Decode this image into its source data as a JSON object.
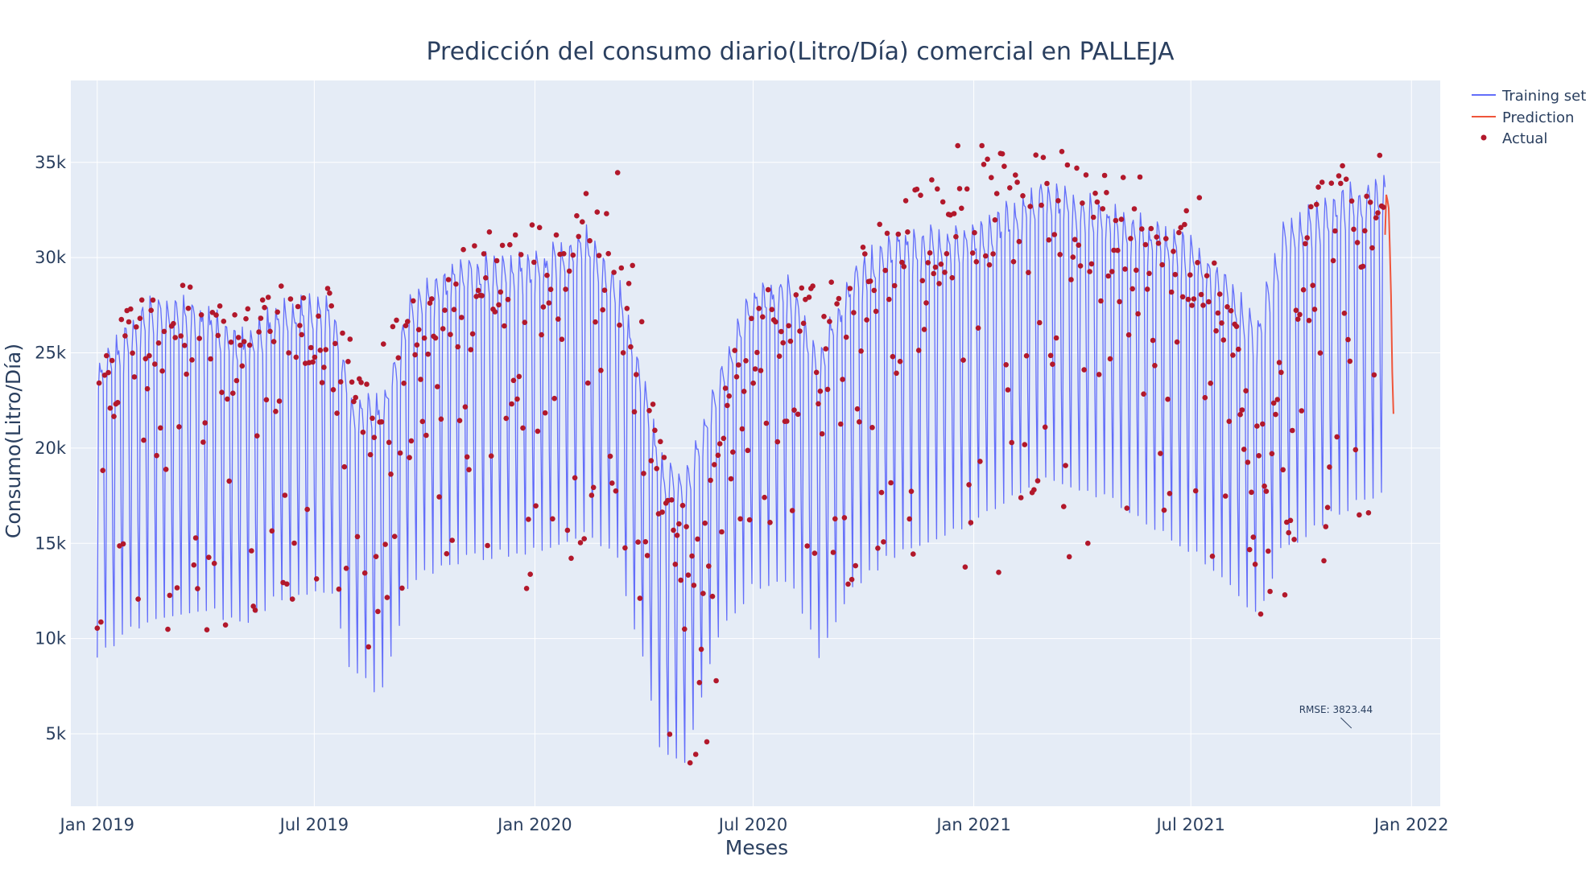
{
  "chart_data": {
    "type": "line",
    "title": "Predicción del consumo diario(Litro/Día) comercial en PALLEJA",
    "xlabel": "Meses",
    "ylabel": "Consumo(Litro/Día)",
    "x_range": [
      "2018-12-10",
      "2022-01-25"
    ],
    "ylim": [
      1200,
      39300
    ],
    "x_ticks": [
      {
        "date": "2019-01-01",
        "label": "Jan 2019"
      },
      {
        "date": "2019-07-01",
        "label": "Jul 2019"
      },
      {
        "date": "2020-01-01",
        "label": "Jan 2020"
      },
      {
        "date": "2020-07-01",
        "label": "Jul 2020"
      },
      {
        "date": "2021-01-01",
        "label": "Jan 2021"
      },
      {
        "date": "2021-07-01",
        "label": "Jul 2021"
      },
      {
        "date": "2022-01-01",
        "label": "Jan 2022"
      }
    ],
    "y_ticks": [
      {
        "value": 5000,
        "label": "5k"
      },
      {
        "value": 10000,
        "label": "10k"
      },
      {
        "value": 15000,
        "label": "15k"
      },
      {
        "value": 20000,
        "label": "20k"
      },
      {
        "value": 25000,
        "label": "25k"
      },
      {
        "value": 30000,
        "label": "30k"
      },
      {
        "value": 35000,
        "label": "35k"
      }
    ],
    "grid": true,
    "legend_position": "top-right",
    "series": [
      {
        "name": "Training set",
        "kind": "line",
        "color": "#636efa",
        "period_days": 7,
        "envelope": [
          {
            "date": "2019-01-01",
            "high": 24500,
            "low": 9000
          },
          {
            "date": "2019-02-15",
            "high": 28000,
            "low": 11000
          },
          {
            "date": "2019-04-01",
            "high": 27500,
            "low": 11500
          },
          {
            "date": "2019-05-01",
            "high": 26000,
            "low": 10500
          },
          {
            "date": "2019-06-01",
            "high": 27500,
            "low": 12000
          },
          {
            "date": "2019-07-15",
            "high": 28000,
            "low": 12500
          },
          {
            "date": "2019-08-01",
            "high": 23000,
            "low": 8000
          },
          {
            "date": "2019-08-25",
            "high": 22500,
            "low": 7000
          },
          {
            "date": "2019-09-20",
            "high": 28000,
            "low": 13000
          },
          {
            "date": "2019-11-01",
            "high": 30000,
            "low": 14000
          },
          {
            "date": "2020-01-01",
            "high": 30000,
            "low": 14500
          },
          {
            "date": "2020-02-15",
            "high": 31500,
            "low": 15500
          },
          {
            "date": "2020-03-10",
            "high": 29000,
            "low": 14000
          },
          {
            "date": "2020-04-01",
            "high": 23500,
            "low": 8500
          },
          {
            "date": "2020-04-15",
            "high": 19500,
            "low": 4000
          },
          {
            "date": "2020-05-05",
            "high": 18500,
            "low": 3500
          },
          {
            "date": "2020-06-01",
            "high": 24000,
            "low": 10000
          },
          {
            "date": "2020-07-01",
            "high": 28500,
            "low": 12500
          },
          {
            "date": "2020-08-01",
            "high": 29000,
            "low": 13000
          },
          {
            "date": "2020-08-25",
            "high": 25000,
            "low": 9000
          },
          {
            "date": "2020-09-20",
            "high": 29500,
            "low": 12500
          },
          {
            "date": "2020-11-01",
            "high": 31500,
            "low": 14500
          },
          {
            "date": "2021-01-01",
            "high": 31500,
            "low": 16000
          },
          {
            "date": "2021-03-01",
            "high": 34000,
            "low": 18500
          },
          {
            "date": "2021-05-01",
            "high": 32500,
            "low": 17000
          },
          {
            "date": "2021-07-01",
            "high": 31000,
            "low": 14500
          },
          {
            "date": "2021-08-01",
            "high": 29000,
            "low": 13000
          },
          {
            "date": "2021-08-25",
            "high": 26500,
            "low": 11000
          },
          {
            "date": "2021-09-15",
            "high": 31500,
            "low": 14500
          },
          {
            "date": "2021-11-01",
            "high": 33500,
            "low": 16500
          },
          {
            "date": "2021-12-08",
            "high": 34000,
            "low": 17500
          }
        ],
        "end_date": "2021-12-10"
      },
      {
        "name": "Prediction",
        "kind": "line",
        "color": "#ef553b",
        "x": [
          "2021-12-10",
          "2021-12-11",
          "2021-12-12",
          "2021-12-13",
          "2021-12-14",
          "2021-12-15",
          "2021-12-16",
          "2021-12-17"
        ],
        "y": [
          31200,
          33300,
          33000,
          32600,
          30500,
          28000,
          24000,
          21800
        ]
      },
      {
        "name": "Actual",
        "kind": "markers",
        "color": "#b2182b",
        "envelope": [
          {
            "date": "2019-01-01",
            "high": 26000,
            "low": 10000
          },
          {
            "date": "2019-03-01",
            "high": 29000,
            "low": 9500
          },
          {
            "date": "2019-05-01",
            "high": 27500,
            "low": 10500
          },
          {
            "date": "2019-06-15",
            "high": 29500,
            "low": 12000
          },
          {
            "date": "2019-07-20",
            "high": 28500,
            "low": 12000
          },
          {
            "date": "2019-08-15",
            "high": 24000,
            "low": 9000
          },
          {
            "date": "2019-09-25",
            "high": 29000,
            "low": 12500
          },
          {
            "date": "2019-11-15",
            "high": 31500,
            "low": 14000
          },
          {
            "date": "2020-01-15",
            "high": 32000,
            "low": 10000
          },
          {
            "date": "2020-03-10",
            "high": 35500,
            "low": 15000
          },
          {
            "date": "2020-04-10",
            "high": 22000,
            "low": 9000
          },
          {
            "date": "2020-04-25",
            "high": 17500,
            "low": 3500
          },
          {
            "date": "2020-05-20",
            "high": 16000,
            "low": 3200
          },
          {
            "date": "2020-06-15",
            "high": 26000,
            "low": 13000
          },
          {
            "date": "2020-07-15",
            "high": 29000,
            "low": 13500
          },
          {
            "date": "2020-09-01",
            "high": 28500,
            "low": 11500
          },
          {
            "date": "2020-11-01",
            "high": 33500,
            "low": 13000
          },
          {
            "date": "2020-12-20",
            "high": 36500,
            "low": 9500
          },
          {
            "date": "2021-03-01",
            "high": 36500,
            "low": 13500
          },
          {
            "date": "2021-05-15",
            "high": 34500,
            "low": 12000
          },
          {
            "date": "2021-07-15",
            "high": 33000,
            "low": 13000
          },
          {
            "date": "2021-09-01",
            "high": 21000,
            "low": 11000
          },
          {
            "date": "2021-10-15",
            "high": 34500,
            "low": 14000
          },
          {
            "date": "2021-12-10",
            "high": 35500,
            "low": 14500
          }
        ]
      }
    ],
    "annotations": [
      {
        "text": "RMSE: 3823.44",
        "date": "2021-10-30",
        "value": 6100,
        "arrow_to": {
          "date": "2021-11-12",
          "value": 5300
        }
      }
    ]
  }
}
